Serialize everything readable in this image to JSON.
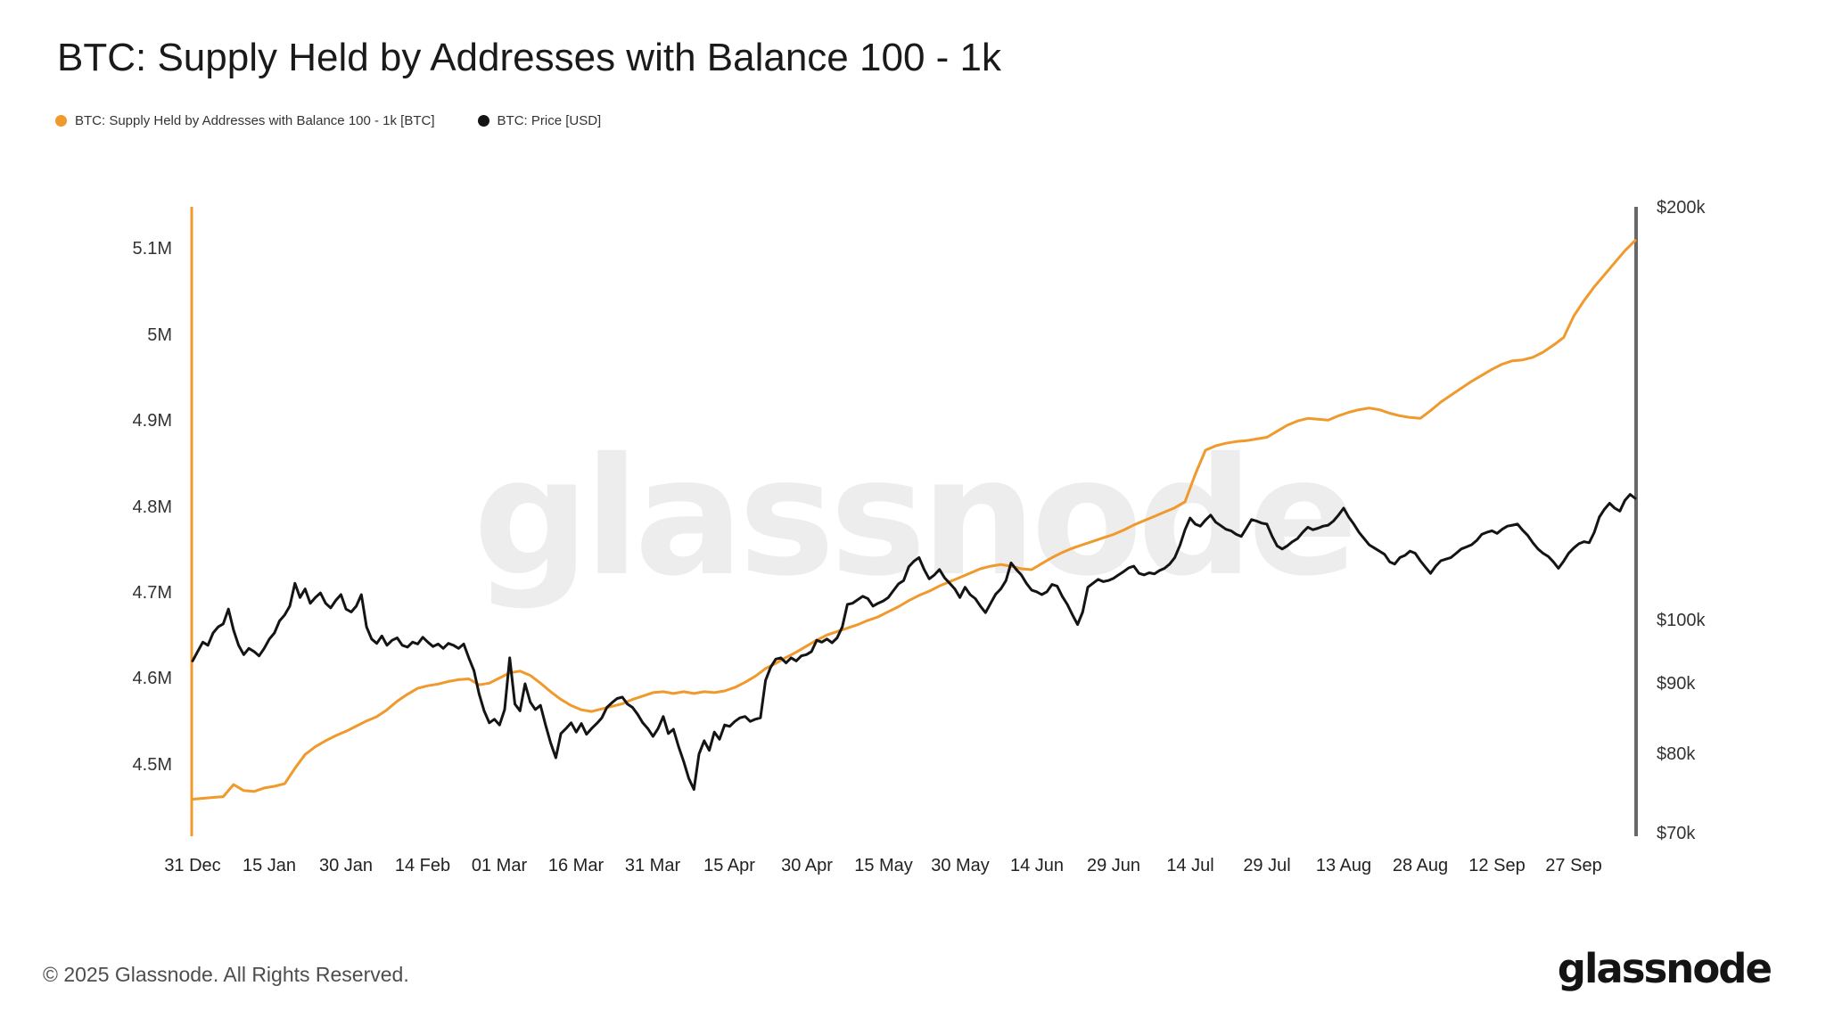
{
  "page": {
    "title": "BTC: Supply Held by Addresses with Balance 100 - 1k",
    "watermark": "glassnode",
    "footer": {
      "copyright": "© 2025 Glassnode. All Rights Reserved.",
      "logo": "glassnode"
    }
  },
  "legend": {
    "items": [
      {
        "label": "BTC: Supply Held by Addresses with Balance 100 - 1k [BTC]",
        "color": "#f0992c"
      },
      {
        "label": "BTC: Price [USD]",
        "color": "#141414"
      }
    ]
  },
  "chart_data": {
    "type": "line",
    "title": "BTC: Supply Held by Addresses with Balance 100 - 1k",
    "grid": "off",
    "legend_position": "top-left",
    "x_axis": {
      "tick_labels": [
        "31 Dec",
        "15 Jan",
        "30 Jan",
        "14 Feb",
        "01 Mar",
        "16 Mar",
        "31 Mar",
        "15 Apr",
        "30 Apr",
        "15 May",
        "30 May",
        "14 Jun",
        "29 Jun",
        "14 Jul",
        "29 Jul",
        "13 Aug",
        "28 Aug",
        "12 Sep",
        "27 Sep"
      ],
      "tick_days": [
        0,
        15,
        30,
        45,
        60,
        75,
        90,
        105,
        120,
        135,
        150,
        165,
        180,
        195,
        210,
        225,
        240,
        255,
        270
      ],
      "total_days": 282
    },
    "left_axis": {
      "scale": "linear",
      "tick_labels": [
        "5.1M",
        "5M",
        "4.9M",
        "4.8M",
        "4.7M",
        "4.6M",
        "4.5M"
      ],
      "tick_values": [
        5.1,
        5.0,
        4.9,
        4.8,
        4.7,
        4.6,
        4.5
      ],
      "axis_color": "#f0992c",
      "unit": "BTC (millions)"
    },
    "right_axis": {
      "scale": "log",
      "tick_labels": [
        "$200k",
        "$100k",
        "$90k",
        "$80k",
        "$70k"
      ],
      "tick_values": [
        200,
        100,
        90,
        80,
        70
      ],
      "axis_color": "#686868",
      "unit": "USD (thousands)"
    },
    "series": [
      {
        "name": "BTC: Supply Held by Addresses with Balance 100 - 1k [BTC]",
        "axis": "left",
        "color": "#f0992c",
        "unit": "M BTC",
        "points": {
          "start_day": 0,
          "step": 2,
          "values": [
            4.46,
            4.461,
            4.462,
            4.463,
            4.477,
            4.47,
            4.469,
            4.473,
            4.475,
            4.478,
            4.496,
            4.512,
            4.521,
            4.528,
            4.534,
            4.539,
            4.545,
            4.551,
            4.556,
            4.564,
            4.574,
            4.582,
            4.589,
            4.592,
            4.594,
            4.597,
            4.599,
            4.6,
            4.593,
            4.595,
            4.601,
            4.607,
            4.609,
            4.604,
            4.595,
            4.585,
            4.576,
            4.569,
            4.564,
            4.562,
            4.565,
            4.568,
            4.571,
            4.576,
            4.58,
            4.584,
            4.585,
            4.583,
            4.585,
            4.583,
            4.585,
            4.584,
            4.586,
            4.59,
            4.596,
            4.603,
            4.612,
            4.618,
            4.625,
            4.631,
            4.638,
            4.645,
            4.651,
            4.655,
            4.659,
            4.663,
            4.668,
            4.672,
            4.678,
            4.684,
            4.691,
            4.697,
            4.702,
            4.708,
            4.713,
            4.718,
            4.723,
            4.728,
            4.731,
            4.733,
            4.731,
            4.728,
            4.727,
            4.734,
            4.741,
            4.747,
            4.752,
            4.756,
            4.76,
            4.764,
            4.768,
            4.773,
            4.779,
            4.784,
            4.789,
            4.794,
            4.799,
            4.806,
            4.838,
            4.866,
            4.871,
            4.874,
            4.876,
            4.877,
            4.879,
            4.881,
            4.888,
            4.895,
            4.9,
            4.903,
            4.902,
            4.901,
            4.906,
            4.91,
            4.913,
            4.915,
            4.913,
            4.909,
            4.906,
            4.904,
            4.903,
            4.912,
            4.922,
            4.93,
            4.938,
            4.946,
            4.953,
            4.96,
            4.966,
            4.97,
            4.971,
            4.974,
            4.98,
            4.988,
            4.997,
            5.022,
            5.04,
            5.056,
            5.07,
            5.084,
            5.098,
            5.11
          ]
        }
      },
      {
        "name": "BTC: Price [USD]",
        "axis": "right",
        "color": "#141414",
        "unit": "k USD",
        "points": {
          "start_day": 0,
          "step": 1,
          "values": [
            93.5,
            95,
            96.5,
            96,
            98,
            99,
            99.5,
            102,
            98.5,
            96,
            94.5,
            95.5,
            95,
            94.3,
            95.5,
            97,
            98,
            100,
            101,
            102.5,
            106.5,
            104,
            105.5,
            103,
            104,
            104.8,
            103,
            102.2,
            103.5,
            104.5,
            102,
            101.5,
            102.5,
            104.5,
            99,
            97,
            96.3,
            97.5,
            96,
            96.8,
            97.2,
            96,
            95.7,
            96.5,
            96.2,
            97.3,
            96.5,
            95.8,
            96.2,
            95.5,
            96.3,
            96,
            95.5,
            96.2,
            94,
            92,
            88.5,
            86,
            84.3,
            84.8,
            84,
            86.2,
            94,
            87,
            86,
            90,
            87.3,
            86.2,
            86.8,
            84,
            81.5,
            79.5,
            82.8,
            83.5,
            84.3,
            83,
            84.2,
            82.7,
            83.5,
            84.2,
            85,
            86.5,
            87.2,
            87.8,
            88,
            87,
            86.5,
            85.5,
            84.3,
            83.5,
            82.4,
            83.5,
            85.2,
            82.8,
            83.4,
            81,
            79,
            76.8,
            75.4,
            80,
            81.8,
            80.5,
            83,
            82,
            84,
            83.8,
            84.5,
            85,
            85.2,
            84.5,
            84.8,
            85,
            90.5,
            92.5,
            93.8,
            94,
            93.2,
            94,
            93.5,
            94.3,
            94.5,
            95,
            96.8,
            96.5,
            97,
            96.4,
            97.2,
            99,
            102.8,
            103,
            103.6,
            104.2,
            103.8,
            102.5,
            103,
            103.4,
            104,
            105.2,
            106.4,
            107,
            109.5,
            110.5,
            111.2,
            109,
            107.3,
            108,
            109,
            107.5,
            106.5,
            105.5,
            104,
            105.8,
            104.5,
            103.8,
            102.5,
            101.4,
            103,
            104.6,
            105.5,
            107,
            110.2,
            109,
            108,
            106.5,
            105.3,
            105,
            104.5,
            105,
            106.3,
            106,
            104.2,
            102.8,
            101,
            99.4,
            101.5,
            105.8,
            106.5,
            107.2,
            106.8,
            107,
            107.4,
            108,
            108.6,
            109.3,
            109.6,
            108.3,
            108,
            108.4,
            108.2,
            108.8,
            109.2,
            110,
            111.2,
            113.5,
            116.5,
            118.8,
            117.6,
            117.2,
            118.4,
            119.4,
            118,
            117.3,
            116.6,
            116.3,
            115.6,
            115.2,
            116.8,
            118.5,
            118.2,
            117.8,
            117.6,
            115.3,
            113.4,
            112.8,
            113.4,
            114.2,
            114.8,
            116,
            117,
            116.5,
            116.8,
            117.2,
            117.4,
            118.2,
            119.4,
            120.8,
            119,
            117.6,
            116,
            114.8,
            113.6,
            113,
            112.4,
            111.8,
            110.4,
            110,
            111.2,
            111.6,
            112.4,
            112,
            110.6,
            109.4,
            108.3,
            109.6,
            110.6,
            110.9,
            111.2,
            112,
            112.8,
            113.2,
            113.6,
            114.4,
            115.6,
            116,
            116.3,
            115.8,
            116.6,
            117.2,
            117.4,
            117.6,
            116.4,
            115.4,
            114,
            112.8,
            112,
            111.4,
            110.4,
            109.2,
            110.5,
            112,
            113,
            113.8,
            114.2,
            114,
            116,
            119,
            120.6,
            121.8,
            120.8,
            120.2,
            122.4,
            123.6,
            122.8
          ]
        }
      }
    ]
  }
}
